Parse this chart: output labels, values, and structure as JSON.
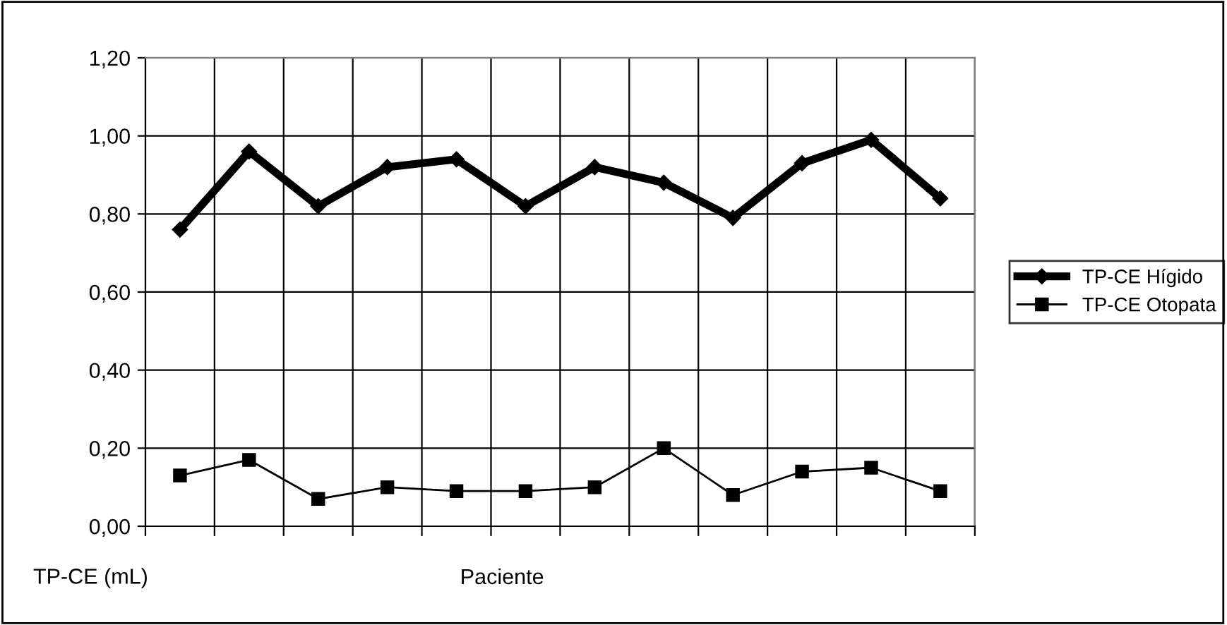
{
  "chart_data": {
    "type": "line",
    "categories": [
      null,
      null,
      null,
      null,
      null,
      null,
      null,
      null,
      null,
      null,
      null,
      null
    ],
    "series": [
      {
        "name": "TP-CE Hígido",
        "color": "#000000",
        "marker": "diamond",
        "values": [
          0.76,
          0.96,
          0.82,
          0.92,
          0.94,
          0.82,
          0.92,
          0.88,
          0.79,
          0.93,
          0.99,
          0.84
        ]
      },
      {
        "name": "TP-CE Otopata",
        "color": "#000000",
        "marker": "square",
        "values": [
          0.13,
          0.17,
          0.07,
          0.1,
          0.09,
          0.09,
          0.1,
          0.2,
          0.08,
          0.14,
          0.15,
          0.09
        ]
      }
    ],
    "xlabel": "Paciente",
    "ylabel": "TP-CE (mL)",
    "ylim": [
      0,
      1.2
    ],
    "yticks": [
      {
        "value": 0,
        "label": "0,00"
      },
      {
        "value": 0.2,
        "label": "0,20"
      },
      {
        "value": 0.4,
        "label": "0,40"
      },
      {
        "value": 0.6,
        "label": "0,60"
      },
      {
        "value": 0.8,
        "label": "0,80"
      },
      {
        "value": 1.0,
        "label": "1,00"
      },
      {
        "value": 1.2,
        "label": "1,20"
      }
    ],
    "grid": true,
    "legend": "right",
    "line_style": "solid"
  }
}
